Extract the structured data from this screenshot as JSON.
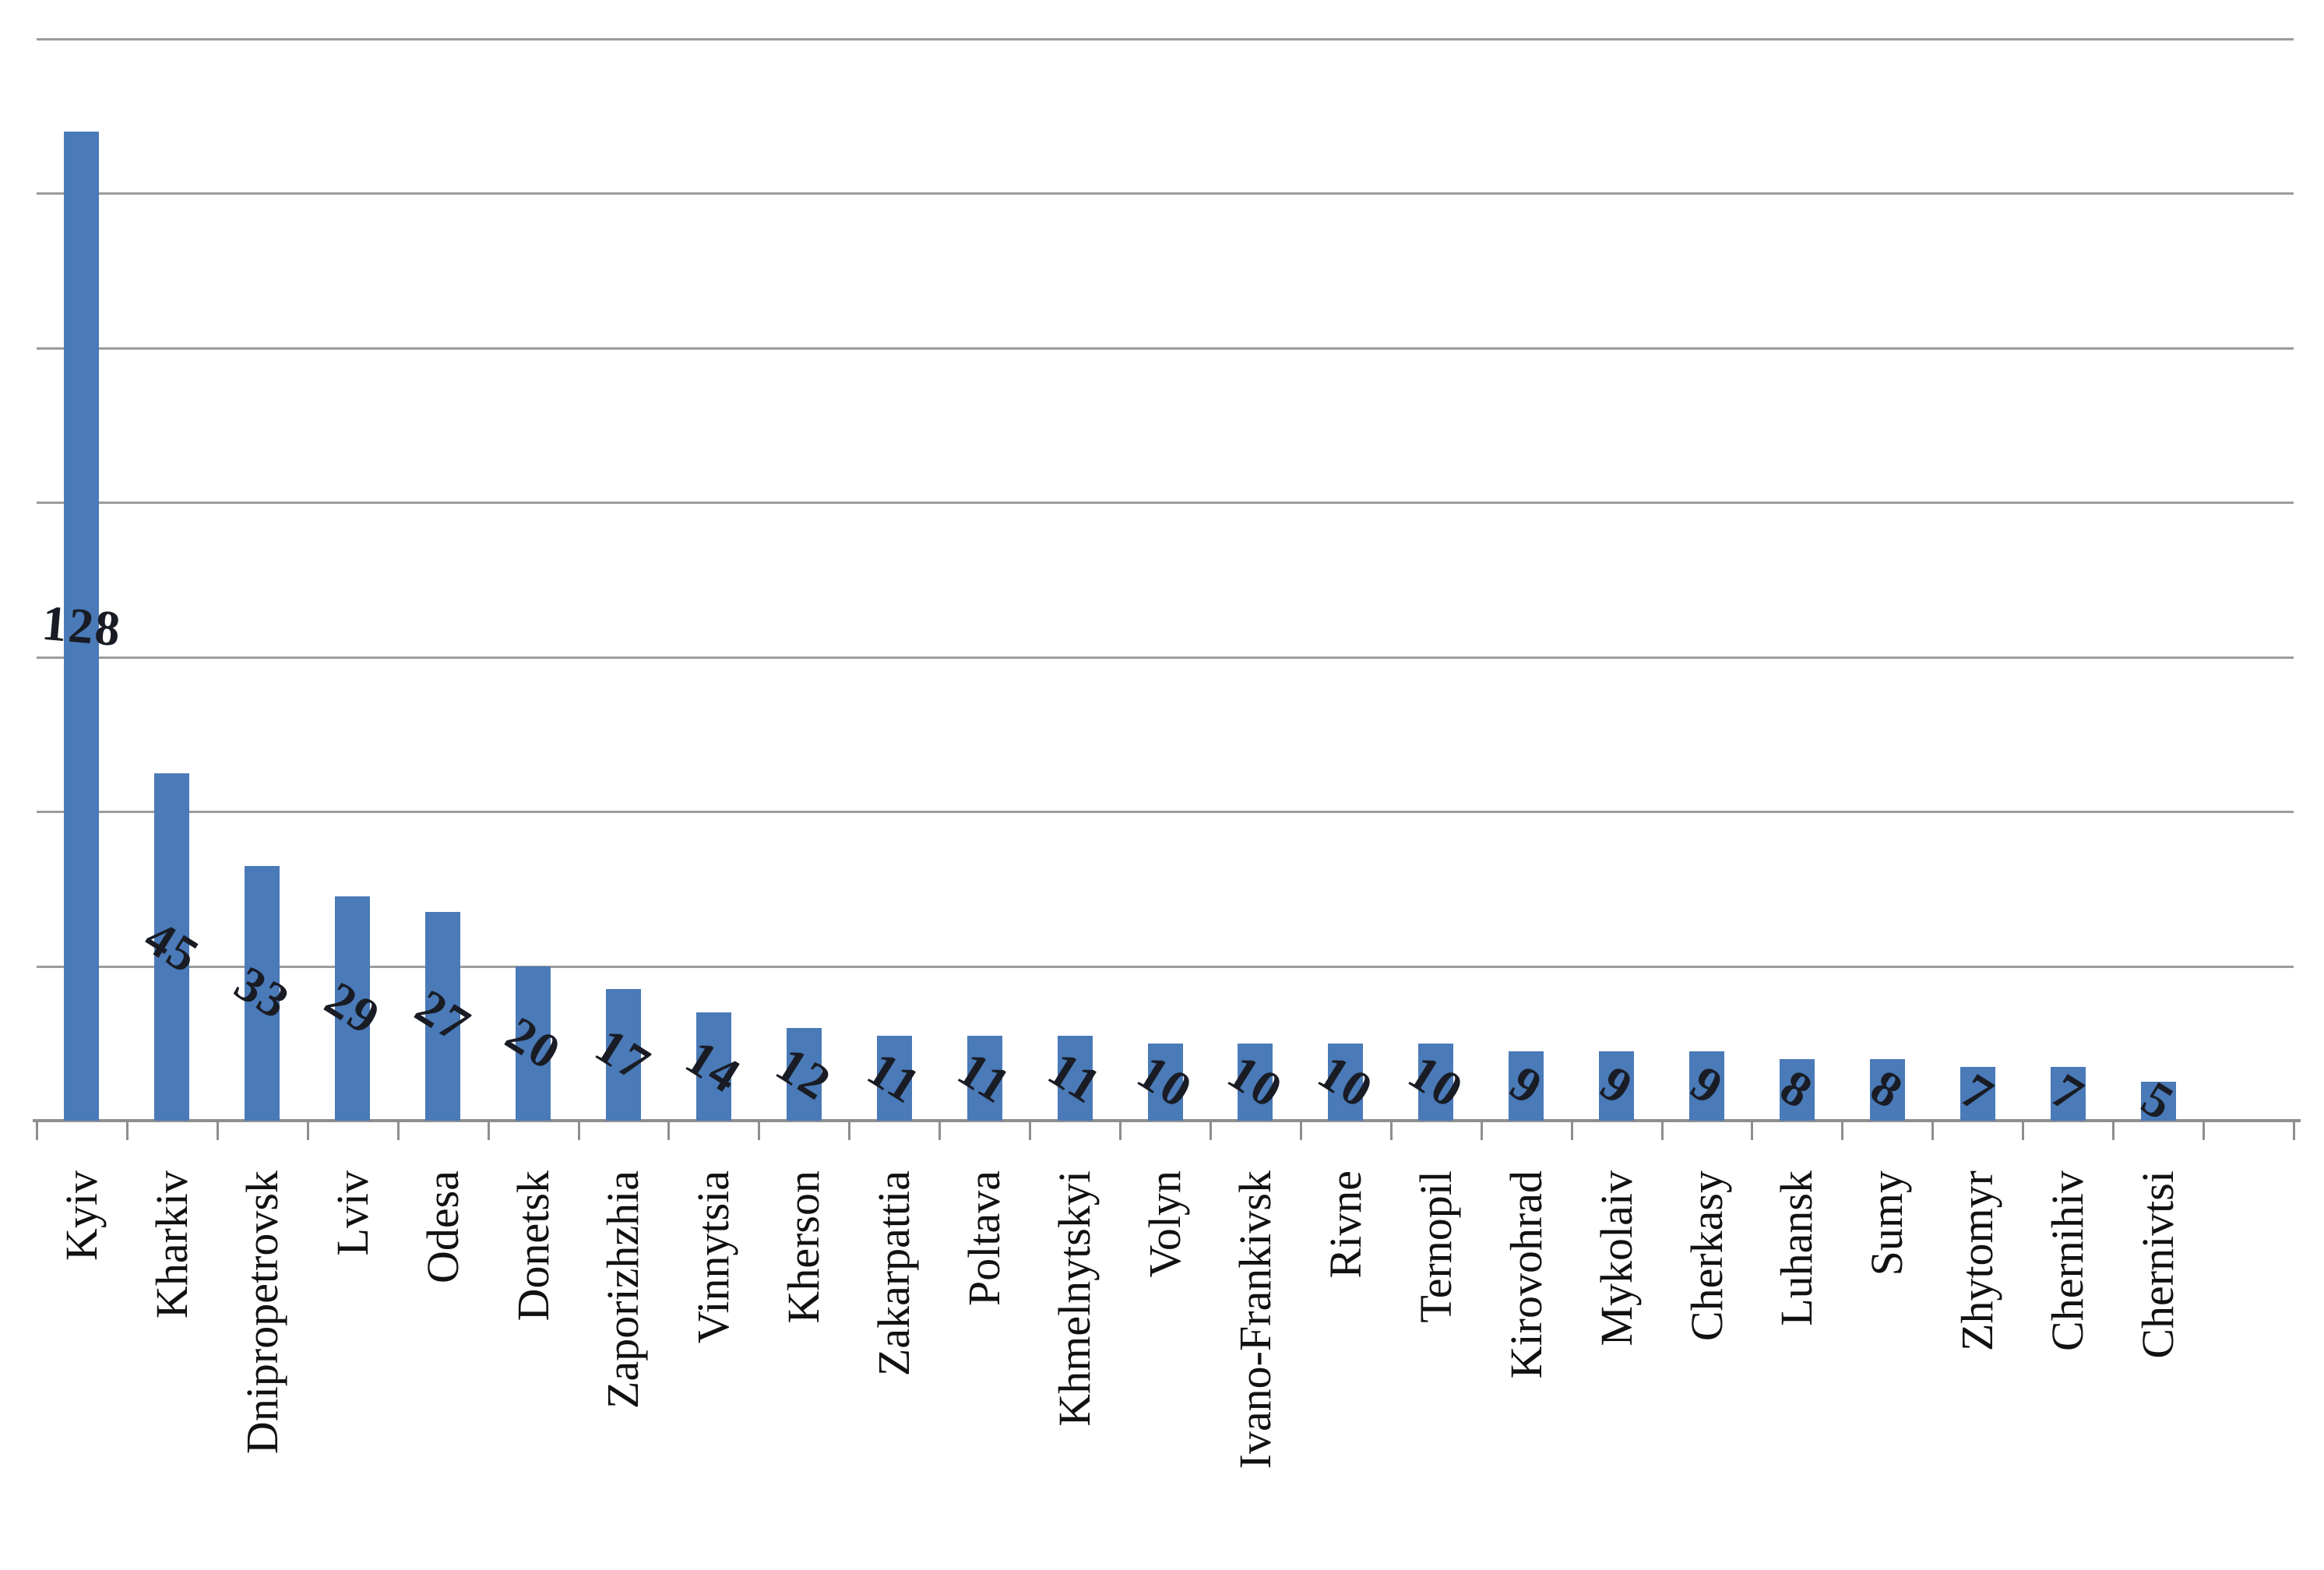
{
  "chart_data": {
    "type": "bar",
    "title": "",
    "xlabel": "",
    "ylabel": "",
    "categories": [
      "Kyiv",
      "Kharkiv",
      "Dnipropetrovsk",
      "Lviv",
      "Odesa",
      "Donetsk",
      "Zaporizhzhia",
      "Vinnytsia",
      "Kherson",
      "Zakarpattia",
      "Poltava",
      "Khmelnytskyi",
      "Volyn",
      "Ivano-Frankivsk",
      "Rivne",
      "Ternopil",
      "Kirovohrad",
      "Mykolaiv",
      "Cherkasy",
      "Luhansk",
      "Sumy",
      "Zhytomyr",
      "Chernihiv",
      "Chernivtsi"
    ],
    "values": [
      128,
      45,
      33,
      29,
      27,
      20,
      17,
      14,
      12,
      11,
      11,
      11,
      10,
      10,
      10,
      10,
      9,
      9,
      9,
      8,
      8,
      7,
      7,
      5
    ],
    "ylim": [
      0,
      140
    ],
    "gridline_step": 20,
    "grid": "horizontal-only",
    "legend": "none",
    "value_label_position": "center-of-bar",
    "colors": {
      "bar": "#4a7ab8",
      "gridline": "#9c9c9c",
      "axis": "#8e8e8e",
      "value_label": "#191c24",
      "category_label": "#111111",
      "background": "#ffffff"
    }
  }
}
